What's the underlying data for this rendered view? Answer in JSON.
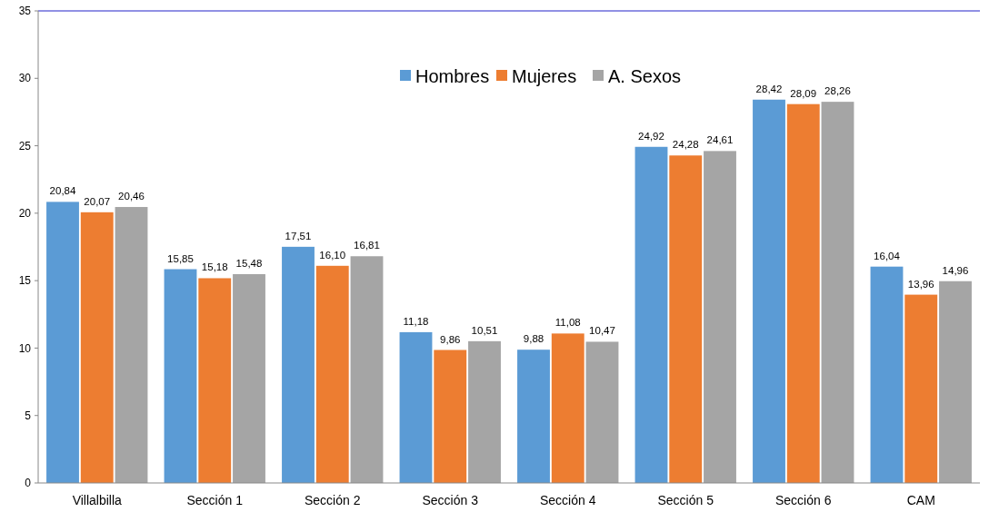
{
  "chart_data": {
    "type": "bar",
    "categories": [
      "Villalbilla",
      "Sección 1",
      "Sección 2",
      "Sección 3",
      "Sección 4",
      "Sección 5",
      "Sección 6",
      "CAM"
    ],
    "series": [
      {
        "name": "Hombres",
        "color": "#5b9bd5",
        "values": [
          20.84,
          15.85,
          17.51,
          11.18,
          9.88,
          24.92,
          28.42,
          16.04
        ],
        "value_labels": [
          "20,84",
          "15,85",
          "17,51",
          "11,18",
          "9,88",
          "24,92",
          "28,42",
          "16,04"
        ]
      },
      {
        "name": "Mujeres",
        "color": "#ed7d31",
        "values": [
          20.07,
          15.18,
          16.1,
          9.86,
          11.08,
          24.28,
          28.09,
          13.96
        ],
        "value_labels": [
          "20,07",
          "15,18",
          "16,10",
          "9,86",
          "11,08",
          "24,28",
          "28,09",
          "13,96"
        ]
      },
      {
        "name": "A. Sexos",
        "color": "#a5a5a5",
        "values": [
          20.46,
          15.48,
          16.81,
          10.51,
          10.47,
          24.61,
          28.26,
          14.96
        ],
        "value_labels": [
          "20,46",
          "15,48",
          "16,81",
          "10,51",
          "10,47",
          "24,61",
          "28,26",
          "14,96"
        ]
      }
    ],
    "ylim": [
      0,
      35
    ],
    "yticks": [
      0,
      5,
      10,
      15,
      20,
      25,
      30,
      35
    ],
    "grid": false,
    "legend": "top"
  }
}
